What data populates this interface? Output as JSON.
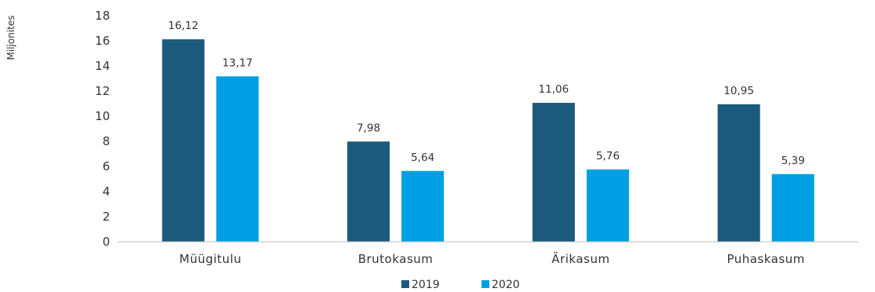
{
  "chart_data": {
    "type": "bar",
    "title": "",
    "xlabel": "",
    "ylabel": "Miljonites",
    "ylim": [
      0,
      18
    ],
    "yticks": [
      0,
      2,
      4,
      6,
      8,
      10,
      12,
      14,
      16,
      18
    ],
    "categories": [
      "Müügitulu",
      "Brutokasum",
      "Ärikasum",
      "Puhaskasum"
    ],
    "series": [
      {
        "name": "2019",
        "color": "#1c5a7d",
        "values": [
          16.12,
          7.98,
          11.06,
          10.95
        ],
        "labels": [
          "16,12",
          "7,98",
          "11,06",
          "10,95"
        ]
      },
      {
        "name": "2020",
        "color": "#009fe3",
        "values": [
          13.17,
          5.64,
          5.76,
          5.39
        ],
        "labels": [
          "13,17",
          "5,64",
          "5,76",
          "5,39"
        ]
      }
    ],
    "grid": false,
    "legend": "bottom-center"
  }
}
